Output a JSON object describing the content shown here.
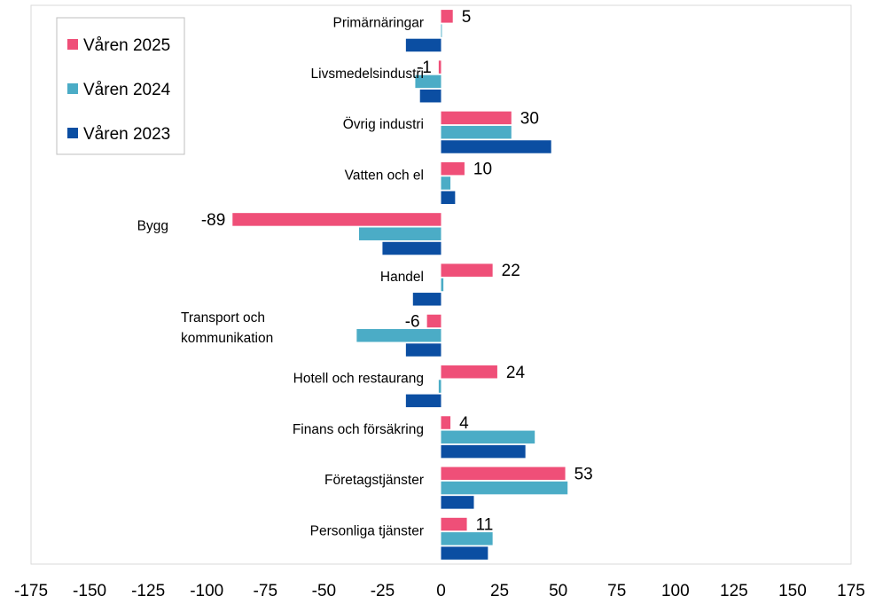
{
  "chart_data": {
    "type": "bar",
    "orientation": "horizontal",
    "title": "",
    "xlabel": "",
    "ylabel": "",
    "xlim": [
      -175,
      175
    ],
    "xticks": [
      -175,
      -150,
      -125,
      -100,
      -75,
      -50,
      -25,
      0,
      25,
      50,
      75,
      100,
      125,
      150,
      175
    ],
    "grid": false,
    "legend_position": "top-left",
    "categories": [
      "Primärnäringar",
      "Livsmedelsindustri",
      "Övrig industri",
      "Vatten och el",
      "Bygg",
      "Handel",
      "Transport och kommunikation",
      "Hotell och restaurang",
      "Finans och försäkring",
      "Företagstjänster",
      "Personliga tjänster"
    ],
    "category_lines": [
      [
        "Primärnäringar"
      ],
      [
        "Livsmedelsindustri"
      ],
      [
        "Övrig industri"
      ],
      [
        "Vatten och el"
      ],
      [
        "Bygg"
      ],
      [
        "Handel"
      ],
      [
        "Transport och",
        "kommunikation"
      ],
      [
        "Hotell och restaurang"
      ],
      [
        "Finans och försäkring"
      ],
      [
        "Företagstjänster"
      ],
      [
        "Personliga tjänster"
      ]
    ],
    "series": [
      {
        "name": "Våren 2025",
        "color": "#EF4F78",
        "labeled": true,
        "values": [
          5,
          -1,
          30,
          10,
          -89,
          22,
          -6,
          24,
          4,
          53,
          11
        ]
      },
      {
        "name": "Våren 2024",
        "color": "#4BACC6",
        "labeled": false,
        "values": [
          0,
          -11,
          30,
          4,
          -35,
          1,
          -36,
          -1,
          40,
          54,
          22
        ]
      },
      {
        "name": "Våren 2023",
        "color": "#0B4EA2",
        "labeled": false,
        "values": [
          -15,
          -9,
          47,
          6,
          -25,
          -12,
          -15,
          -15,
          36,
          14,
          20
        ]
      }
    ]
  }
}
